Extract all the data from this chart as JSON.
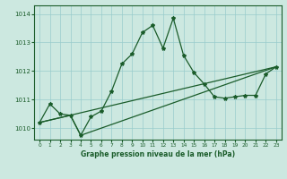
{
  "title": "Graphe pression niveau de la mer (hPa)",
  "xlim": [
    -0.5,
    23.5
  ],
  "ylim": [
    1009.6,
    1014.3
  ],
  "yticks": [
    1010,
    1011,
    1012,
    1013,
    1014
  ],
  "xticks": [
    0,
    1,
    2,
    3,
    4,
    5,
    6,
    7,
    8,
    9,
    10,
    11,
    12,
    13,
    14,
    15,
    16,
    17,
    18,
    19,
    20,
    21,
    22,
    23
  ],
  "xtick_labels": [
    "0",
    "1",
    "2",
    "3",
    "4",
    "5",
    "6",
    "7",
    "8",
    "9",
    "10",
    "11",
    "12",
    "13",
    "14",
    "15",
    "16",
    "17",
    "18",
    "19",
    "20",
    "21",
    "22",
    "23"
  ],
  "bg_color": "#cce8e0",
  "grid_color": "#99cccc",
  "line_color": "#1a5c2a",
  "series1_x": [
    0,
    1,
    2,
    3,
    4,
    5,
    6,
    7,
    8,
    9,
    10,
    11,
    12,
    13,
    14,
    15,
    16,
    17,
    18,
    19,
    20,
    21,
    22,
    23
  ],
  "series1_y": [
    1010.2,
    1010.85,
    1010.5,
    1010.45,
    1009.75,
    1010.4,
    1010.6,
    1011.3,
    1012.25,
    1012.6,
    1013.35,
    1013.6,
    1012.8,
    1013.85,
    1012.55,
    1011.95,
    1011.55,
    1011.1,
    1011.05,
    1011.1,
    1011.15,
    1011.15,
    1011.9,
    1012.15
  ],
  "series2_x": [
    0,
    23
  ],
  "series2_y": [
    1010.2,
    1012.15
  ],
  "series3_x": [
    0,
    3,
    4,
    23
  ],
  "series3_y": [
    1010.2,
    1010.45,
    1009.75,
    1012.15
  ]
}
